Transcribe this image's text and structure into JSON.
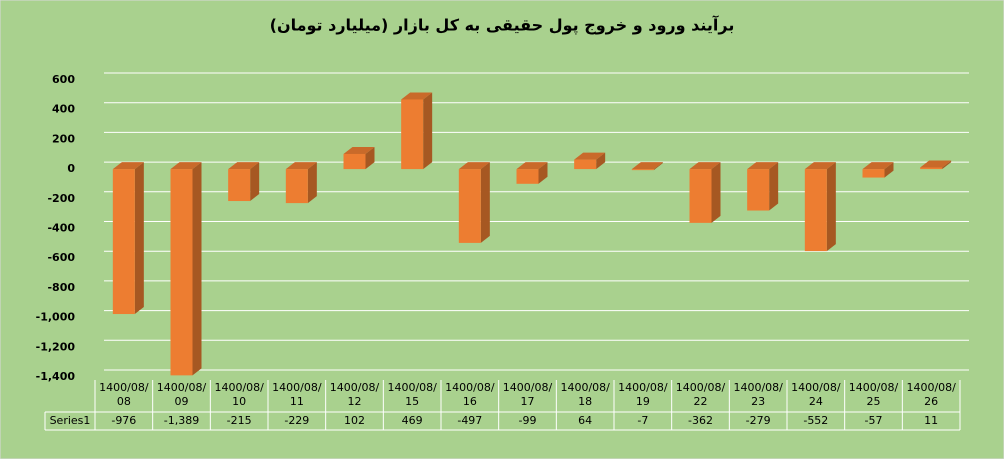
{
  "chart_data": {
    "type": "bar3d",
    "title": "برآیند ورود و خروج پول حقیقی به کل بازار (میلیارد تومان)",
    "categories": [
      "1400/08/08",
      "1400/08/09",
      "1400/08/10",
      "1400/08/11",
      "1400/08/12",
      "1400/08/15",
      "1400/08/16",
      "1400/08/17",
      "1400/08/18",
      "1400/08/19",
      "1400/08/22",
      "1400/08/23",
      "1400/08/24",
      "1400/08/25",
      "1400/08/26"
    ],
    "series": [
      {
        "name": "Series1",
        "color": "#ed7d31",
        "values": [
          -976,
          -1389,
          -215,
          -229,
          102,
          469,
          -497,
          -99,
          64,
          -7,
          -362,
          -279,
          -552,
          -57,
          11
        ],
        "value_labels": [
          "-976",
          "-1,389",
          "-215",
          "-229",
          "102",
          "469",
          "-497",
          "-99",
          "64",
          "-7",
          "-362",
          "-279",
          "-552",
          "-57",
          "11"
        ]
      }
    ],
    "ylim": [
      -1400,
      600
    ],
    "yticks": [
      {
        "value": -1400,
        "label": "-1,400"
      },
      {
        "value": -1200,
        "label": "-1,200"
      },
      {
        "value": -1000,
        "label": "-1,000"
      },
      -800,
      -600,
      -400,
      -200,
      0,
      200,
      400,
      600
    ],
    "negative_tick_color": "#ff0000",
    "background": "#a9d18e",
    "grid": true,
    "data_table": true
  }
}
